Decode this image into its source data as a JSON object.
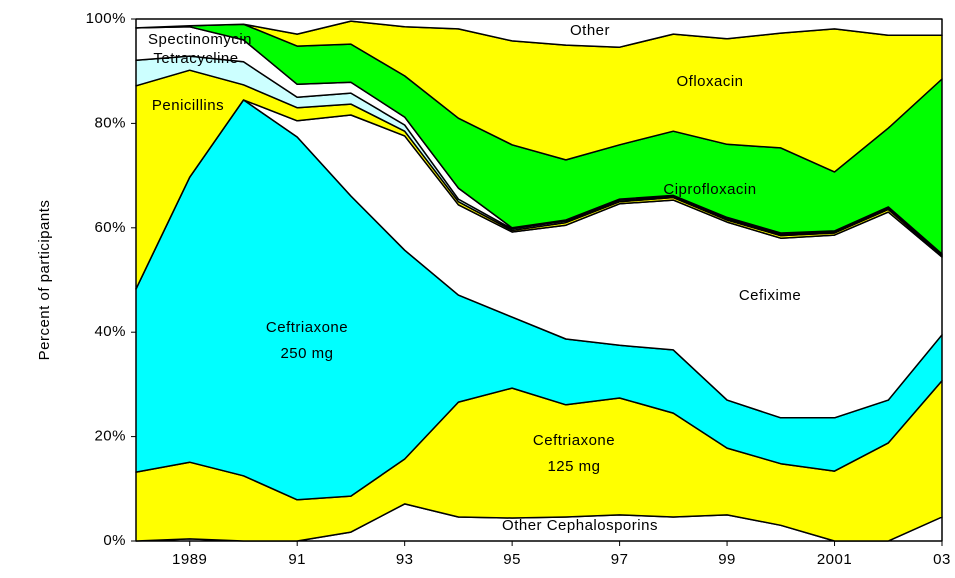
{
  "chart_data": {
    "type": "stacked-area",
    "y_label": "Percent of participants",
    "x": [
      1988,
      1989,
      1990,
      1991,
      1992,
      1993,
      1994,
      1995,
      1996,
      1997,
      1998,
      1999,
      2000,
      2001,
      2002,
      2003
    ],
    "xlim": [
      1988,
      2003
    ],
    "xticks": [
      1989,
      {
        "value": 1991,
        "label": "91"
      },
      {
        "value": 1993,
        "label": "93"
      },
      {
        "value": 1995,
        "label": "95"
      },
      {
        "value": 1997,
        "label": "97"
      },
      {
        "value": 1999,
        "label": "99"
      },
      2001,
      {
        "value": 2003,
        "label": "03"
      }
    ],
    "ylim": [
      0,
      100
    ],
    "yticks": [
      {
        "value": 0,
        "label": "0%"
      },
      {
        "value": 20,
        "label": "20%"
      },
      {
        "value": 40,
        "label": "40%"
      },
      {
        "value": 60,
        "label": "60%"
      },
      {
        "value": 80,
        "label": "80%"
      },
      {
        "value": 100,
        "label": "100%"
      }
    ],
    "series": [
      {
        "name": "Other Cephalosporins",
        "color": "#ffffff",
        "values": [
          0,
          0.4,
          0,
          0,
          1.7,
          7.1,
          4.6,
          4.4,
          4.6,
          5,
          4.6,
          5,
          3,
          0,
          0,
          4.6
        ]
      },
      {
        "name": "Ceftriaxone\n125 mg",
        "color": "#ffff00",
        "values": [
          13.2,
          14.7,
          12.5,
          7.9,
          6.9,
          8.6,
          22,
          24.9,
          21.5,
          22.4,
          19.9,
          12.8,
          11.8,
          13.4,
          18.8,
          26.1
        ]
      },
      {
        "name": "Ceftriaxone\n250 mg",
        "color": "#00ffff",
        "values": [
          35.1,
          54.6,
          72,
          69.5,
          57.5,
          40,
          20.5,
          13.6,
          12.6,
          10.1,
          12.1,
          9.2,
          8.8,
          10.2,
          8.2,
          8.8
        ]
      },
      {
        "name": "Cefixime",
        "color": "#ffffff",
        "values": [
          0,
          0,
          0,
          3.1,
          15.5,
          21.9,
          17.3,
          16.3,
          21.8,
          27.1,
          28.7,
          34.1,
          34.4,
          35,
          36,
          14.9
        ]
      },
      {
        "name": "Penicillins",
        "color": "#ffff00",
        "values": [
          38.9,
          20.5,
          2.9,
          2.5,
          2.1,
          0.9,
          0.6,
          0.3,
          0.5,
          0.4,
          0.5,
          0.4,
          0.5,
          0.4,
          0.5,
          0.2
        ]
      },
      {
        "name": "Tetracycline",
        "color": "#ccffff",
        "values": [
          4.9,
          2.7,
          4.4,
          2,
          2.1,
          1.2,
          0.5,
          0.3,
          0.3,
          0.3,
          0.2,
          0.3,
          0.3,
          0.2,
          0.3,
          0.2
        ]
      },
      {
        "name": "Spectinomycin",
        "color": "#ffffff",
        "values": [
          6.2,
          5.6,
          4.2,
          2.5,
          2.1,
          1.5,
          2.1,
          0.2,
          0.2,
          0.2,
          0.2,
          0.2,
          0.2,
          0.2,
          0.2,
          0.2
        ]
      },
      {
        "name": "Ciprofloxacin",
        "color": "#00ff00",
        "values": [
          0,
          0.2,
          3,
          7.3,
          7.3,
          7.9,
          13.4,
          15.9,
          11.5,
          10.4,
          12.3,
          14,
          16.3,
          11.3,
          15.1,
          33.5
        ]
      },
      {
        "name": "Ofloxacin",
        "color": "#ffff00",
        "values": [
          0,
          0,
          0,
          2.3,
          4.4,
          9.4,
          17.1,
          19.9,
          22,
          18.7,
          18.6,
          20.2,
          22,
          27.4,
          17.8,
          8.4
        ]
      },
      {
        "name": "Other",
        "color": "#ffffff",
        "values": [
          1.7,
          1.3,
          1,
          2.9,
          0.4,
          1.5,
          1.9,
          4.2,
          5,
          5.4,
          2.9,
          3.8,
          2.7,
          1.9,
          3.1,
          3.1
        ]
      }
    ]
  }
}
